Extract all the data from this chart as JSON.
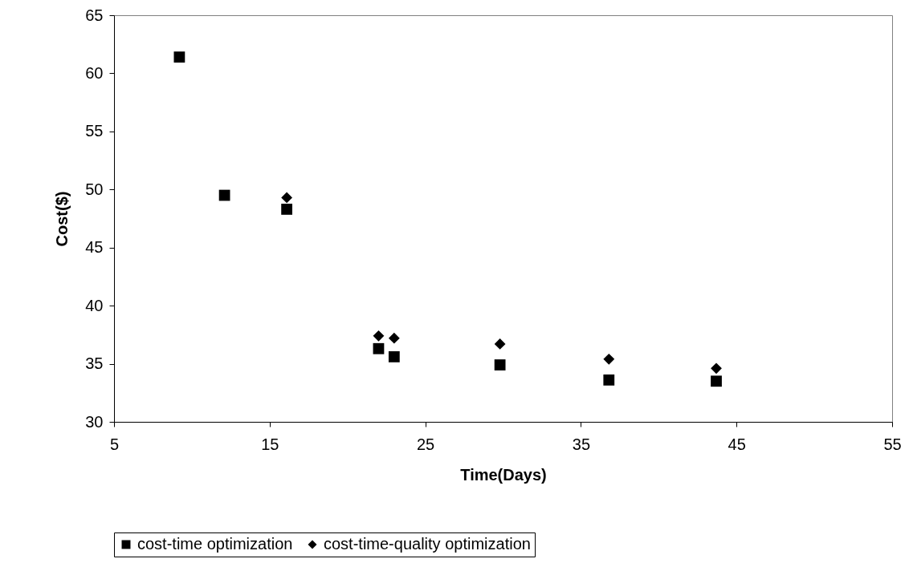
{
  "chart_data": {
    "type": "scatter",
    "xlabel": "Time(Days)",
    "ylabel": "Cost($)",
    "xlim": [
      5,
      55
    ],
    "xticks": [
      5,
      15,
      25,
      35,
      45,
      55
    ],
    "ylim": [
      30,
      65
    ],
    "yticks": [
      30,
      35,
      40,
      45,
      50,
      55,
      60,
      65
    ],
    "grid": false,
    "legend": "bottom",
    "series": [
      {
        "name": "cost-time optimization",
        "color": "#000000",
        "marker": "square",
        "x": [
          9.2,
          12.1,
          16.1,
          22.0,
          23.0,
          29.8,
          36.8,
          43.7
        ],
        "values": [
          61.4,
          49.5,
          48.3,
          36.3,
          35.6,
          34.9,
          33.6,
          33.5
        ]
      },
      {
        "name": "cost-time-quality optimization",
        "color": "#000000",
        "marker": "diamond",
        "x": [
          16.1,
          22.0,
          23.0,
          29.8,
          36.8,
          43.7
        ],
        "values": [
          49.3,
          37.4,
          37.2,
          36.7,
          35.4,
          34.6
        ]
      }
    ]
  }
}
